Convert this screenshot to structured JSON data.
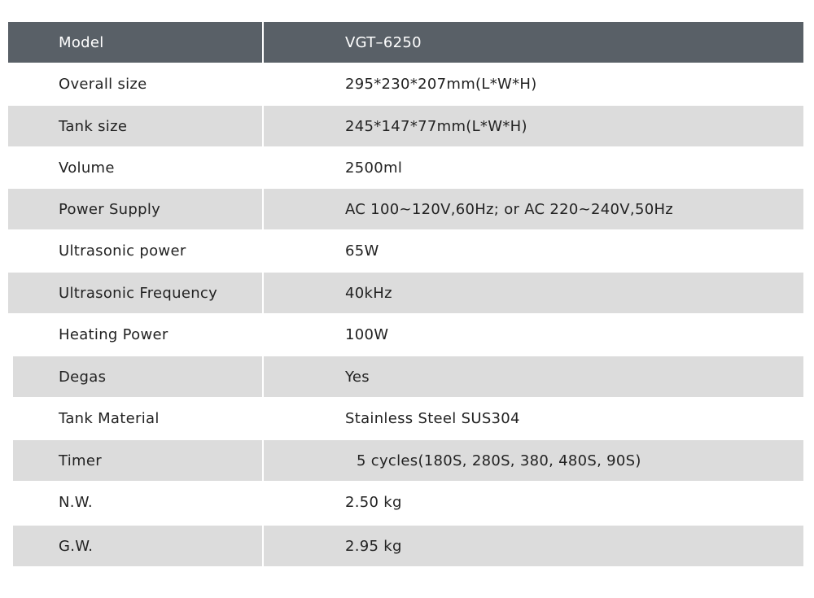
{
  "table": {
    "header": [
      "Model",
      "VGT–6250"
    ],
    "rows": [
      [
        "Overall size",
        "295*230*207mm(L*W*H)"
      ],
      [
        "Tank size",
        "245*147*77mm(L*W*H)"
      ],
      [
        "Volume",
        "2500ml"
      ],
      [
        "Power Supply",
        "AC 100~120V,60Hz; or AC 220~240V,50Hz"
      ],
      [
        "Ultrasonic power",
        "65W"
      ],
      [
        "Ultrasonic Frequency",
        "40kHz"
      ],
      [
        "Heating Power",
        "100W"
      ],
      [
        "Degas",
        "Yes"
      ],
      [
        "Tank Material",
        "Stainless Steel SUS304"
      ],
      [
        "Timer",
        "5 cycles(180S, 280S, 380, 480S, 90S)"
      ],
      [
        "N.W.",
        "2.50 kg"
      ],
      [
        "G.W.",
        "2.95 kg"
      ]
    ]
  }
}
